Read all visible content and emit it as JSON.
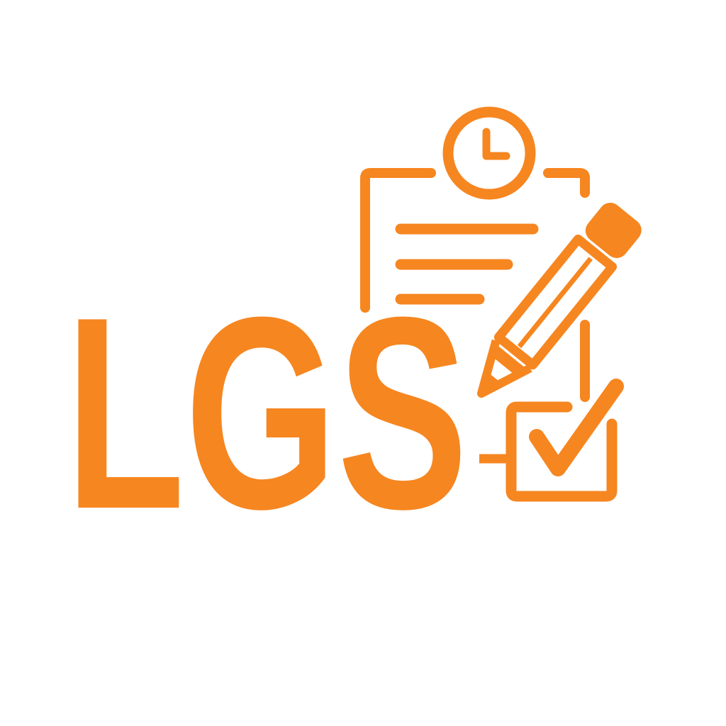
{
  "logo": {
    "text": "LGS",
    "color": "#F68620",
    "background": "#FFFFFF"
  },
  "icons": {
    "clipboard": "clipboard-document-icon",
    "clock": "clock-icon",
    "pencil": "pencil-icon",
    "checkbox": "checkbox-checked-icon"
  }
}
